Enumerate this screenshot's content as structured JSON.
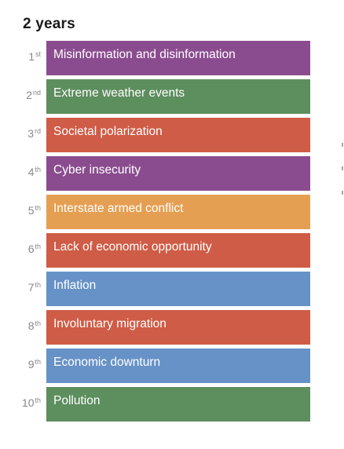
{
  "title": "2 years",
  "risks": [
    {
      "rank": "1",
      "suffix": "st",
      "label": "Misinformation and disinformation",
      "color": "#8a4c8f"
    },
    {
      "rank": "2",
      "suffix": "nd",
      "label": "Extreme weather events",
      "color": "#5d8e5e"
    },
    {
      "rank": "3",
      "suffix": "rd",
      "label": "Societal polarization",
      "color": "#cf5c46"
    },
    {
      "rank": "4",
      "suffix": "th",
      "label": "Cyber insecurity",
      "color": "#8a4c8f"
    },
    {
      "rank": "5",
      "suffix": "th",
      "label": "Interstate armed conflict",
      "color": "#e59f52"
    },
    {
      "rank": "6",
      "suffix": "th",
      "label": "Lack of economic opportunity",
      "color": "#cf5c46"
    },
    {
      "rank": "7",
      "suffix": "th",
      "label": "Inflation",
      "color": "#6792c7"
    },
    {
      "rank": "8",
      "suffix": "th",
      "label": "Involuntary migration",
      "color": "#cf5c46"
    },
    {
      "rank": "9",
      "suffix": "th",
      "label": "Economic downturn",
      "color": "#6792c7"
    },
    {
      "rank": "10",
      "suffix": "th",
      "label": "Pollution",
      "color": "#5d8e5e"
    }
  ]
}
